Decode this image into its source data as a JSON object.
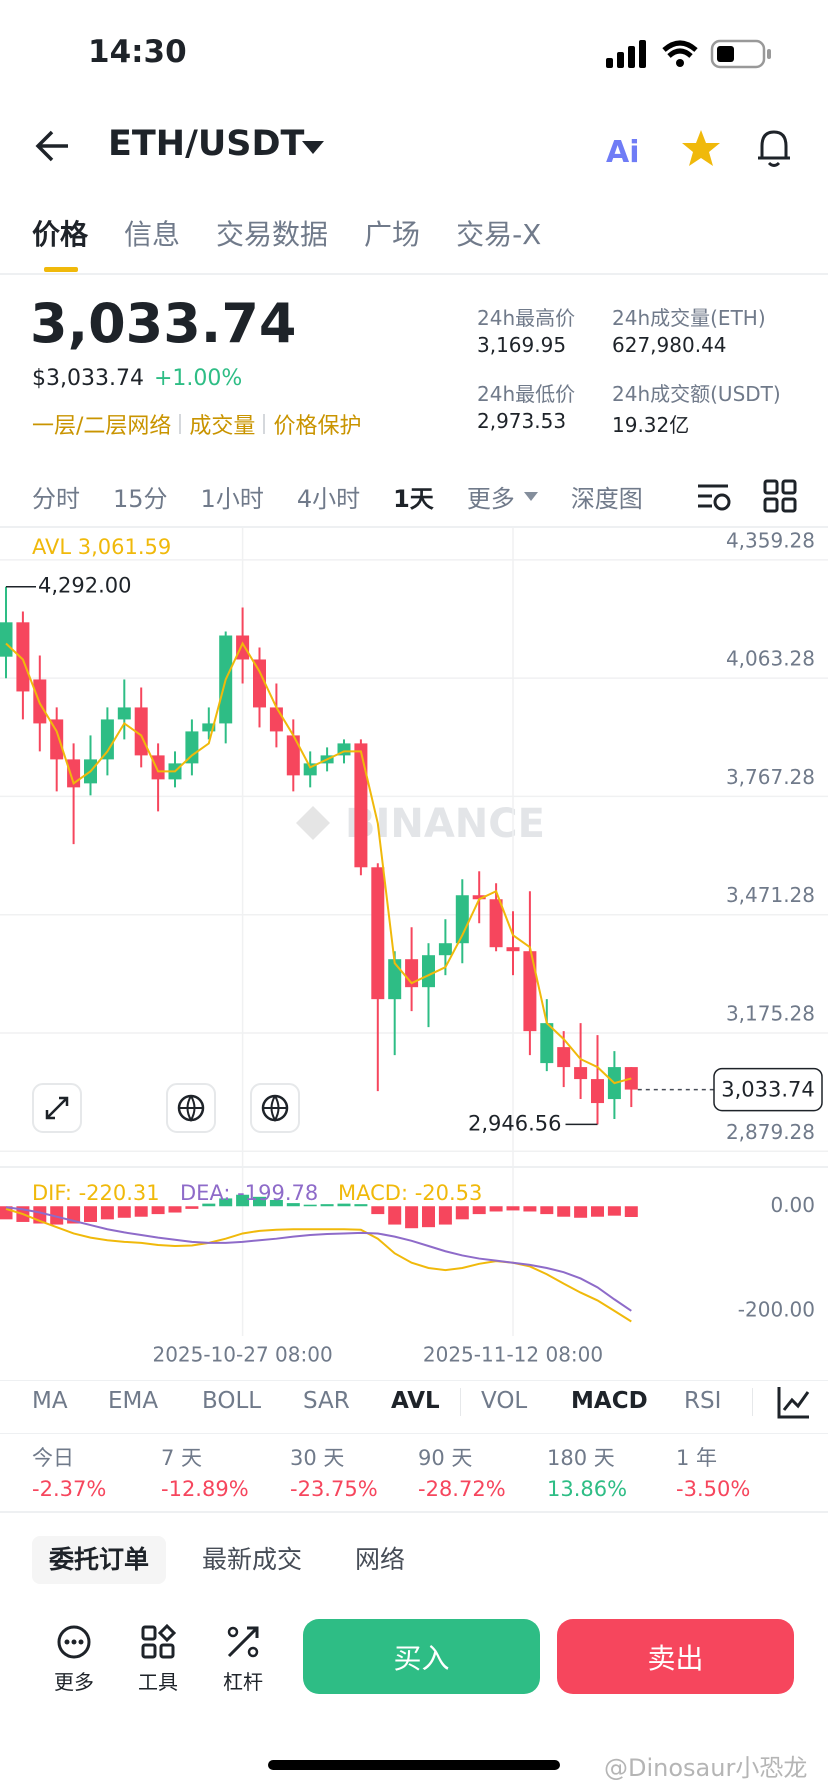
{
  "status_bar": {
    "time": "14:30"
  },
  "header": {
    "pair": "ETH/USDT"
  },
  "tabs": {
    "items": [
      "价格",
      "信息",
      "交易数据",
      "广场",
      "交易-X"
    ],
    "selected": 0
  },
  "ticker": {
    "price": "3,033.74",
    "fiat_price": "$3,033.74",
    "change": "+1.00%",
    "links": [
      "一层/二层网络",
      "成交量",
      "价格保护"
    ],
    "stats": [
      {
        "label": "24h最高价",
        "value": "3,169.95"
      },
      {
        "label": "24h成交量(ETH)",
        "value": "627,980.44"
      },
      {
        "label": "24h最低价",
        "value": "2,973.53"
      },
      {
        "label": "24h成交额(USDT)",
        "value": "19.32亿"
      }
    ]
  },
  "intervals": {
    "items": [
      "分时",
      "15分",
      "1小时",
      "4小时",
      "1天",
      "更多",
      "深度图"
    ],
    "selected": 4
  },
  "chart_data": [
    {
      "type": "candlestick",
      "categories": [
        null,
        null,
        null,
        null,
        null,
        null,
        null,
        null,
        null,
        null,
        null,
        null,
        null,
        null,
        "2025-10-27 08:00",
        null,
        null,
        null,
        null,
        null,
        null,
        null,
        null,
        null,
        null,
        null,
        null,
        null,
        null,
        null,
        "2025-11-12 08:00",
        null,
        null,
        null,
        null,
        null,
        null,
        null
      ],
      "open": [
        4117,
        4203,
        4060,
        3960,
        3860,
        3800,
        3860,
        3960,
        3990,
        3870,
        3810,
        3850,
        3930,
        3950,
        4170,
        4110,
        3990,
        3920,
        3820,
        3850,
        3870,
        3900,
        3590,
        3260,
        3360,
        3290,
        3370,
        3400,
        3520,
        3510,
        3390,
        3380,
        3100,
        3140,
        3090,
        3060,
        3010,
        3090
      ],
      "high": [
        4292,
        4230,
        4120,
        3990,
        3900,
        3920,
        3990,
        4060,
        4040,
        3900,
        3880,
        3960,
        3990,
        4180,
        4240,
        4140,
        4050,
        3960,
        3880,
        3890,
        3910,
        3910,
        3600,
        3380,
        3440,
        3400,
        3460,
        3560,
        3580,
        3550,
        3480,
        3530,
        3260,
        3180,
        3200,
        3170,
        3130,
        3090
      ],
      "low": [
        4063,
        3960,
        3880,
        3780,
        3648,
        3770,
        3820,
        3910,
        3840,
        3730,
        3790,
        3820,
        3910,
        3900,
        4050,
        3940,
        3890,
        3780,
        3790,
        3830,
        3850,
        3570,
        3030,
        3120,
        3230,
        3190,
        3320,
        3350,
        3450,
        3380,
        3320,
        3120,
        3080,
        3040,
        3010,
        2946.56,
        2960,
        2990
      ],
      "close": [
        4203,
        4030,
        3950,
        3860,
        3790,
        3860,
        3960,
        3990,
        3870,
        3810,
        3850,
        3930,
        3950,
        4170,
        4110,
        3990,
        3930,
        3820,
        3850,
        3870,
        3900,
        3590,
        3260,
        3360,
        3290,
        3370,
        3400,
        3520,
        3510,
        3390,
        3380,
        3180,
        3200,
        3090,
        3060,
        3000,
        3090,
        3033.74
      ],
      "up_color": "#2EBD85",
      "down_color": "#F6465D",
      "avl": {
        "label": "AVL 3,061.59",
        "color": "#F0B90B",
        "values": [
          4150,
          4110,
          4000,
          3930,
          3800,
          3830,
          3880,
          3950,
          3920,
          3830,
          3830,
          3870,
          3900,
          4060,
          4150,
          4080,
          3990,
          3920,
          3840,
          3860,
          3880,
          3880,
          3700,
          3350,
          3300,
          3320,
          3340,
          3420,
          3510,
          3530,
          3420,
          3390,
          3200,
          3160,
          3110,
          3090,
          3050,
          3061.59
        ]
      },
      "ylim": [
        2845,
        4439
      ],
      "yticks": [
        {
          "value": 2879.28,
          "label": "2,879.28"
        },
        {
          "value": 3175.28,
          "label": "3,175.28"
        },
        {
          "value": 3471.28,
          "label": "3,471.28"
        },
        {
          "value": 3767.28,
          "label": "3,767.28"
        },
        {
          "value": 4063.28,
          "label": "4,063.28"
        },
        {
          "value": 4359.28,
          "label": "4,359.28"
        }
      ],
      "grid": true,
      "last_price": {
        "value": 3033.74,
        "label": "3,033.74"
      },
      "annotations": [
        {
          "value": 4292,
          "label": "4,292.00"
        },
        {
          "value": 2946.56,
          "label": "2,946.56"
        }
      ]
    },
    {
      "type": "macd",
      "histogram": {
        "label": "MACD: -20.53",
        "color": "#F0B90B",
        "values": [
          -25,
          -30,
          -33,
          -35,
          -33,
          -30,
          -25,
          -22,
          -20,
          -15,
          -12,
          -5,
          5,
          15,
          22,
          18,
          12,
          6,
          3,
          4,
          5,
          4,
          -15,
          -35,
          -42,
          -40,
          -35,
          -25,
          -15,
          -10,
          -8,
          -10,
          -15,
          -20,
          -22,
          -20,
          -18,
          -20.53
        ]
      },
      "lines": [
        {
          "label": "DIF: -220.31",
          "color": "#F0B90B",
          "values": [
            -5,
            -15,
            -28,
            -40,
            -52,
            -60,
            -65,
            -68,
            -70,
            -74,
            -76,
            -75,
            -70,
            -62,
            -52,
            -47,
            -45,
            -44,
            -44,
            -44,
            -44,
            -45,
            -62,
            -90,
            -108,
            -118,
            -122,
            -118,
            -110,
            -105,
            -108,
            -115,
            -130,
            -148,
            -165,
            -180,
            -200,
            -220.31
          ]
        },
        {
          "label": "DEA: -199.78",
          "color": "#8E6BC9",
          "values": [
            -2,
            -6,
            -12,
            -20,
            -28,
            -36,
            -44,
            -50,
            -55,
            -60,
            -64,
            -68,
            -70,
            -70,
            -68,
            -65,
            -62,
            -58,
            -55,
            -53,
            -52,
            -51,
            -52,
            -58,
            -66,
            -76,
            -86,
            -94,
            -100,
            -104,
            -108,
            -112,
            -118,
            -126,
            -138,
            -155,
            -178,
            -199.78
          ]
        }
      ],
      "ylim": [
        -248,
        54
      ],
      "yticks": [
        {
          "value": 0,
          "label": "0.00"
        },
        {
          "value": -200,
          "label": "-200.00"
        }
      ]
    }
  ],
  "indicators": {
    "items": [
      "MA",
      "EMA",
      "BOLL",
      "SAR",
      "AVL",
      "VOL",
      "MACD",
      "RSI"
    ],
    "selected": [
      4,
      6
    ]
  },
  "performance": [
    {
      "period": "今日",
      "change": "-2.37%"
    },
    {
      "period": "7 天",
      "change": "-12.89%"
    },
    {
      "period": "30 天",
      "change": "-23.75%"
    },
    {
      "period": "90 天",
      "change": "-28.72%"
    },
    {
      "period": "180 天",
      "change": "13.86%"
    },
    {
      "period": "1 年",
      "change": "-3.50%"
    }
  ],
  "order_tabs": {
    "items": [
      "委托订单",
      "最新成交",
      "网络"
    ],
    "selected": 0
  },
  "toolbar": {
    "tools": [
      "更多",
      "工具",
      "杠杆"
    ],
    "buy": "买入",
    "sell": "卖出"
  },
  "watermark": "BINANCE",
  "footer_watermark": "@Dinosaur小恐龙"
}
